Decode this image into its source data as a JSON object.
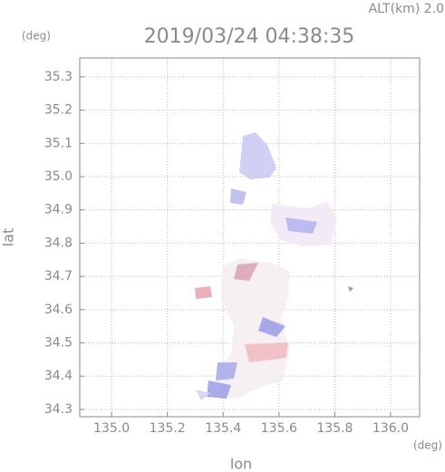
{
  "chart_data": {
    "type": "map",
    "title": "2019/03/24 04:38:35",
    "altitude_label": "ALT(km)  2.0",
    "x_label": "lon",
    "y_label": "lat",
    "x_unit": "(deg)",
    "y_unit": "(deg)",
    "xlim": [
      134.886,
      136.104
    ],
    "ylim": [
      34.278,
      35.357
    ],
    "xticks": [
      {
        "value": 135.0,
        "label": "135.0"
      },
      135.2,
      135.4,
      135.6,
      135.8,
      {
        "value": 136.0,
        "label": "136.0"
      }
    ],
    "yticks": [
      34.3,
      34.4,
      34.5,
      34.6,
      34.7,
      34.8,
      34.9,
      {
        "value": 35.0,
        "label": "35.0"
      },
      35.1,
      35.2,
      35.3
    ],
    "grid": true
  }
}
